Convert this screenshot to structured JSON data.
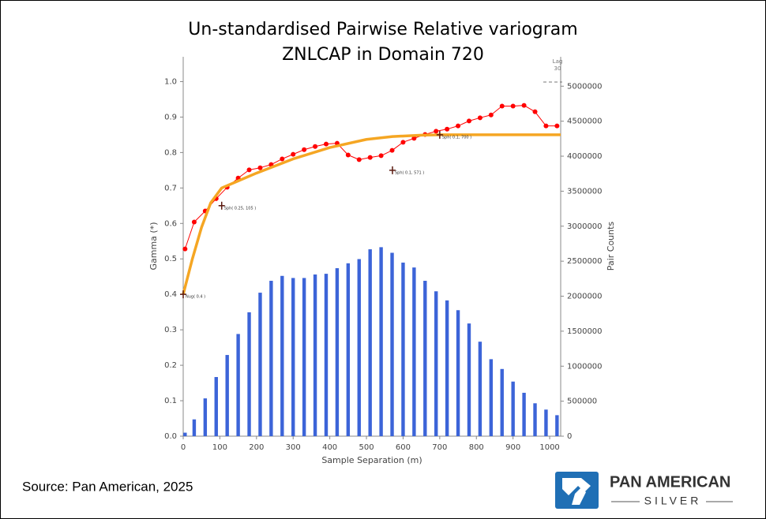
{
  "chart_data": {
    "type": "combo",
    "title": "Un-standardised Pairwise Relative variogram",
    "subtitle": "ZNLCAP in Domain 720",
    "x_label": "Sample Separation (m)",
    "y_label": "Gamma (*)",
    "y2_label": "Pair Counts",
    "xlim": [
      0,
      1030
    ],
    "xticks": [
      0,
      100,
      200,
      300,
      400,
      500,
      600,
      700,
      800,
      900,
      1000
    ],
    "ylim": [
      0,
      1.07
    ],
    "yticks": [
      {
        "value": 0,
        "label": "0.0"
      },
      0.1,
      0.2,
      0.3,
      0.4,
      0.5,
      0.6,
      0.7,
      0.8,
      0.9,
      {
        "value": 1,
        "label": "1.0"
      }
    ],
    "y2lim": [
      0,
      5420000
    ],
    "y2ticks": [
      0,
      500000,
      1000000,
      1500000,
      2000000,
      2500000,
      3000000,
      3500000,
      4000000,
      4500000,
      5000000
    ],
    "lag_label": "Lag",
    "lag": 30,
    "series": [
      {
        "type": "bar",
        "axis": "y2",
        "color": "#3c64d8",
        "x": [
          5,
          30,
          60,
          90,
          120,
          150,
          180,
          210,
          240,
          270,
          300,
          330,
          360,
          390,
          420,
          450,
          480,
          510,
          540,
          570,
          600,
          630,
          660,
          690,
          720,
          750,
          780,
          810,
          840,
          870,
          900,
          930,
          960,
          990,
          1020
        ],
        "values": [
          50000,
          240000,
          540000,
          845000,
          1160000,
          1460000,
          1770000,
          2050000,
          2220000,
          2290000,
          2260000,
          2260000,
          2310000,
          2320000,
          2400000,
          2470000,
          2530000,
          2670000,
          2700000,
          2620000,
          2480000,
          2410000,
          2220000,
          2070000,
          1940000,
          1800000,
          1610000,
          1350000,
          1100000,
          960000,
          780000,
          620000,
          470000,
          380000,
          300000
        ]
      },
      {
        "type": "line",
        "color": "#ff0000",
        "markers": true,
        "x": [
          5,
          30,
          60,
          90,
          120,
          150,
          180,
          210,
          240,
          270,
          300,
          330,
          360,
          390,
          420,
          450,
          480,
          510,
          540,
          570,
          600,
          630,
          660,
          690,
          720,
          750,
          780,
          810,
          840,
          870,
          900,
          930,
          960,
          990,
          1020
        ],
        "values": [
          0.528,
          0.604,
          0.635,
          0.67,
          0.702,
          0.728,
          0.751,
          0.757,
          0.766,
          0.782,
          0.795,
          0.808,
          0.817,
          0.824,
          0.826,
          0.793,
          0.78,
          0.786,
          0.791,
          0.806,
          0.829,
          0.84,
          0.851,
          0.86,
          0.866,
          0.875,
          0.889,
          0.898,
          0.906,
          0.931,
          0.931,
          0.933,
          0.915,
          0.875,
          0.875
        ]
      },
      {
        "type": "line",
        "color": "#f5a623",
        "markers": false,
        "x": [
          0,
          25,
          50,
          75,
          105,
          150,
          200,
          300,
          400,
          500,
          571,
          650,
          700,
          1030
        ],
        "values": [
          0.4,
          0.5,
          0.589,
          0.658,
          0.7,
          0.72,
          0.742,
          0.782,
          0.814,
          0.837,
          0.845,
          0.849,
          0.85,
          0.85
        ]
      }
    ],
    "annotations": [
      {
        "x": 0,
        "y": 0.4,
        "label": "Nug( 0.4 )"
      },
      {
        "x": 105,
        "y": 0.65,
        "label": "Sph( 0.25, 105 )"
      },
      {
        "x": 571,
        "y": 0.75,
        "label": "Sph( 0.1, 571 )"
      },
      {
        "x": 700,
        "y": 0.85,
        "label": "Sph( 0.1, 700 )"
      }
    ]
  },
  "source": "Source: Pan American, 2025",
  "logo": {
    "name": "PAN AMERICAN",
    "sub": "SILVER"
  }
}
